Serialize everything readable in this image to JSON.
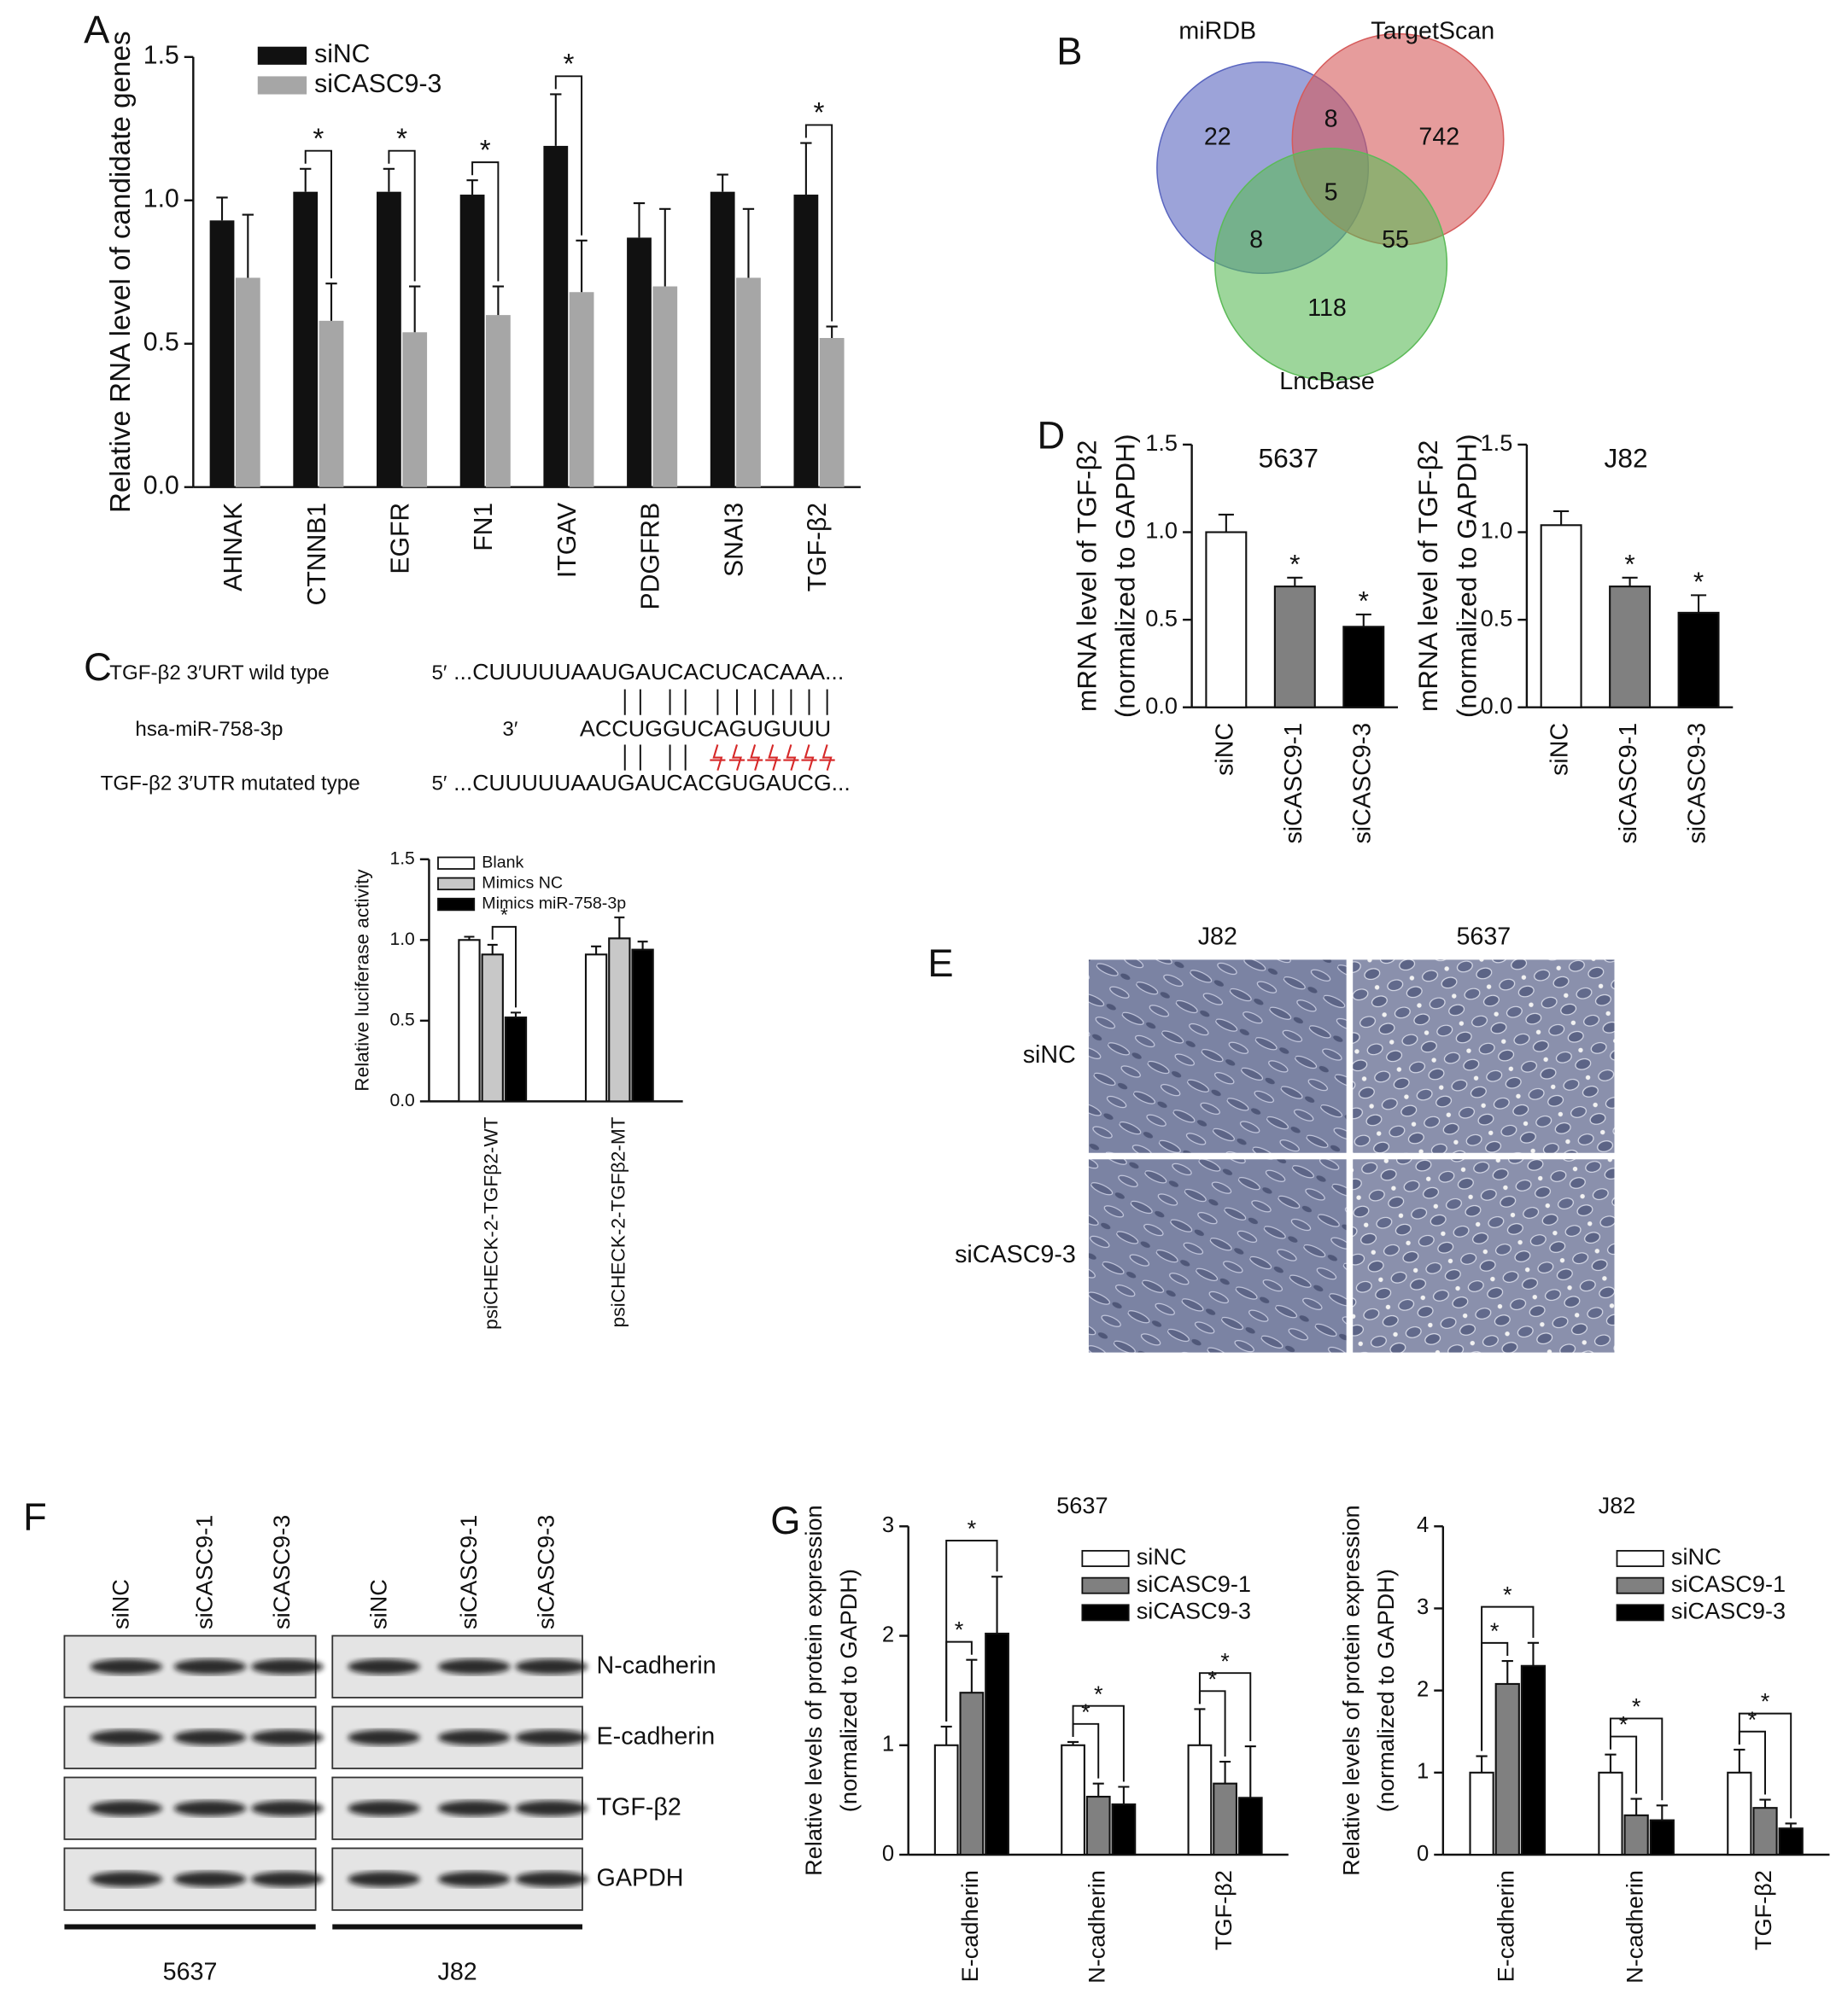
{
  "panel_labels": [
    "A",
    "B",
    "C",
    "D",
    "E",
    "F",
    "G"
  ],
  "chart_data": [
    {
      "type": "bar",
      "ylabel": "Relative RNA level of candidate genes",
      "categories": [
        "AHNAK",
        "CTNNB1",
        "EGFR",
        "FN1",
        "ITGAV",
        "PDGFRB",
        "SNAI3",
        "TGF-β2"
      ],
      "series": [
        {
          "name": "siNC",
          "color": "#111111",
          "values": [
            0.93,
            1.03,
            1.03,
            1.02,
            1.19,
            0.87,
            1.03,
            1.02
          ],
          "errors": [
            0.08,
            0.08,
            0.08,
            0.05,
            0.18,
            0.12,
            0.06,
            0.18
          ]
        },
        {
          "name": "siCASC9-3",
          "color": "#a6a6a6",
          "values": [
            0.73,
            0.58,
            0.54,
            0.6,
            0.68,
            0.7,
            0.73,
            0.52
          ],
          "errors": [
            0.22,
            0.13,
            0.16,
            0.1,
            0.18,
            0.27,
            0.24,
            0.04
          ]
        }
      ],
      "ylim": [
        0,
        1.5
      ],
      "yticks": [
        {
          "value": 0,
          "label": "0.0"
        },
        0.5,
        {
          "value": 1,
          "label": "1.0"
        },
        1.5
      ],
      "legend": "upper left",
      "annotations": [
        {
          "text": "*",
          "category": "CTNNB1",
          "series": [
            "siNC",
            "siCASC9-3"
          ]
        },
        {
          "text": "*",
          "category": "EGFR",
          "series": [
            "siNC",
            "siCASC9-3"
          ]
        },
        {
          "text": "*",
          "category": "FN1",
          "series": [
            "siNC",
            "siCASC9-3"
          ]
        },
        {
          "text": "*",
          "category": "ITGAV",
          "series": [
            "siNC",
            "siCASC9-3"
          ]
        },
        {
          "text": "*",
          "category": "TGF-β2",
          "series": [
            "siNC",
            "siCASC9-3"
          ]
        }
      ]
    },
    {
      "type": "bar",
      "ylabel": "Relative luciferase activity",
      "categories": [
        "psiCHECK-2-TGFβ2-WT",
        "psiCHECK-2-TGFβ2-MT"
      ],
      "series": [
        {
          "name": "Blank",
          "color": "#ffffff",
          "values": [
            1.0,
            0.91
          ],
          "errors": [
            0.02,
            0.05
          ]
        },
        {
          "name": "Mimics NC",
          "color": "#c8c8c8",
          "values": [
            0.91,
            1.01
          ],
          "errors": [
            0.06,
            0.13
          ]
        },
        {
          "name": "Mimics miR-758-3p",
          "color": "#000000",
          "values": [
            0.52,
            0.94
          ],
          "errors": [
            0.03,
            0.05
          ]
        }
      ],
      "edgecolor": "#111111",
      "ylim": [
        0,
        1.5
      ],
      "yticks": [
        {
          "value": 0,
          "label": "0.0"
        },
        0.5,
        {
          "value": 1,
          "label": "1.0"
        },
        1.5
      ],
      "legend": "upper left",
      "annotations": [
        {
          "text": "*",
          "category": "psiCHECK-2-TGFβ2-WT",
          "series": [
            "Mimics NC",
            "Mimics miR-758-3p"
          ]
        }
      ]
    },
    {
      "type": "bar",
      "title": "5637",
      "ylabel": [
        "mRNA level of TGF-β2",
        "(normalized to GAPDH)"
      ],
      "categories": [
        "siNC",
        "siCASC9-1",
        "siCASC9-3"
      ],
      "series": [
        {
          "colors": [
            "#ffffff",
            "#808080",
            "#000000"
          ],
          "values": [
            1.0,
            0.69,
            0.46
          ],
          "errors": [
            0.1,
            0.05,
            0.07
          ]
        }
      ],
      "edgecolor": "#111111",
      "ylim": [
        0,
        1.5
      ],
      "yticks": [
        {
          "value": 0,
          "label": "0.0"
        },
        0.5,
        {
          "value": 1,
          "label": "1.0"
        },
        1.5
      ],
      "annotations": [
        {
          "text": "*",
          "category": "siCASC9-1"
        },
        {
          "text": "*",
          "category": "siCASC9-3"
        }
      ]
    },
    {
      "type": "bar",
      "title": "J82",
      "ylabel": [
        "mRNA level of TGF-β2",
        "(normalized to GAPDH)"
      ],
      "categories": [
        "siNC",
        "siCASC9-1",
        "siCASC9-3"
      ],
      "series": [
        {
          "colors": [
            "#ffffff",
            "#808080",
            "#000000"
          ],
          "values": [
            1.04,
            0.69,
            0.54
          ],
          "errors": [
            0.08,
            0.05,
            0.1
          ]
        }
      ],
      "edgecolor": "#111111",
      "ylim": [
        0,
        1.5
      ],
      "yticks": [
        {
          "value": 0,
          "label": "0.0"
        },
        0.5,
        {
          "value": 1,
          "label": "1.0"
        },
        1.5
      ],
      "annotations": [
        {
          "text": "*",
          "category": "siCASC9-1"
        },
        {
          "text": "*",
          "category": "siCASC9-3"
        }
      ]
    },
    {
      "type": "bar",
      "title": "5637",
      "ylabel": [
        "Relative levels of protein expression",
        "(normalized to GAPDH)"
      ],
      "categories": [
        "E-cadherin",
        "N-cadherin",
        "TGF-β2"
      ],
      "series": [
        {
          "name": "siNC",
          "color": "#ffffff",
          "values": [
            1,
            1,
            1
          ],
          "errors": [
            0.17,
            0.03,
            0.33
          ]
        },
        {
          "name": "siCASC9-1",
          "color": "#808080",
          "values": [
            1.48,
            0.53,
            0.65
          ],
          "errors": [
            0.3,
            0.12,
            0.2
          ]
        },
        {
          "name": "siCASC9-3",
          "color": "#000000",
          "values": [
            2.02,
            0.46,
            0.52
          ],
          "errors": [
            0.52,
            0.16,
            0.47
          ]
        }
      ],
      "edgecolor": "#111111",
      "ylim": [
        0,
        3
      ],
      "yticks": [
        0,
        1,
        2,
        3
      ],
      "legend": "upper right",
      "annotations": [
        {
          "text": "*",
          "category": "E-cadherin",
          "series": [
            "siNC",
            "siCASC9-1"
          ]
        },
        {
          "text": "*",
          "category": "E-cadherin",
          "series": [
            "siNC",
            "siCASC9-3"
          ]
        },
        {
          "text": "*",
          "category": "N-cadherin",
          "series": [
            "siNC",
            "siCASC9-1"
          ]
        },
        {
          "text": "*",
          "category": "N-cadherin",
          "series": [
            "siNC",
            "siCASC9-3"
          ]
        },
        {
          "text": "*",
          "category": "TGF-β2",
          "series": [
            "siNC",
            "siCASC9-1"
          ]
        },
        {
          "text": "*",
          "category": "TGF-β2",
          "series": [
            "siNC",
            "siCASC9-3"
          ]
        }
      ]
    },
    {
      "type": "bar",
      "title": "J82",
      "ylabel": [
        "Relative levels of protein expression",
        "(normalized to GAPDH)"
      ],
      "categories": [
        "E-cadherin",
        "N-cadherin",
        "TGF-β2"
      ],
      "series": [
        {
          "name": "siNC",
          "color": "#ffffff",
          "values": [
            1,
            1,
            1
          ],
          "errors": [
            0.2,
            0.22,
            0.28
          ]
        },
        {
          "name": "siCASC9-1",
          "color": "#808080",
          "values": [
            2.08,
            0.48,
            0.57
          ],
          "errors": [
            0.28,
            0.2,
            0.1
          ]
        },
        {
          "name": "siCASC9-3",
          "color": "#000000",
          "values": [
            2.3,
            0.42,
            0.32
          ],
          "errors": [
            0.28,
            0.18,
            0.06
          ]
        }
      ],
      "edgecolor": "#111111",
      "ylim": [
        0,
        4
      ],
      "yticks": [
        0,
        1,
        2,
        3,
        4
      ],
      "legend": "upper right",
      "annotations": [
        {
          "text": "*",
          "category": "E-cadherin",
          "series": [
            "siNC",
            "siCASC9-1"
          ]
        },
        {
          "text": "*",
          "category": "E-cadherin",
          "series": [
            "siNC",
            "siCASC9-3"
          ]
        },
        {
          "text": "*",
          "category": "N-cadherin",
          "series": [
            "siNC",
            "siCASC9-1"
          ]
        },
        {
          "text": "*",
          "category": "N-cadherin",
          "series": [
            "siNC",
            "siCASC9-3"
          ]
        },
        {
          "text": "*",
          "category": "TGF-β2",
          "series": [
            "siNC",
            "siCASC9-1"
          ]
        },
        {
          "text": "*",
          "category": "TGF-β2",
          "series": [
            "siNC",
            "siCASC9-3"
          ]
        }
      ]
    }
  ],
  "venn": {
    "sets": [
      {
        "name": "miRDB",
        "color": "#5a66c0"
      },
      {
        "name": "TargetScan",
        "color": "#d65a5a"
      },
      {
        "name": "LncBase",
        "color": "#5cba58"
      }
    ],
    "counts": [
      22,
      8,
      742,
      5,
      8,
      55,
      118
    ]
  },
  "sequence": {
    "rows": [
      {
        "name": "TGF-β2  3′URT wild type",
        "end": "5′",
        "seq": "...CUUUUUAAUGAUCACUCACAAA..."
      },
      {
        "name": "hsa-miR-758-3p",
        "end": "3′",
        "seq": "ACCUGGUCAGUGUUU"
      },
      {
        "name": "TGF-β2  3′UTR mutated type",
        "end": "5′",
        "seq": "...CUUUUUAAUGAUCACGUGAUCG..."
      }
    ]
  },
  "micrographs": {
    "columns": [
      "J82",
      "5637"
    ],
    "rows": [
      "siNC",
      "siCASC9-3"
    ]
  },
  "western_blot": {
    "lanes": [
      "siNC",
      "siCASC9-1",
      "siCASC9-3"
    ],
    "cell_lines": [
      "5637",
      "J82"
    ],
    "proteins": [
      "N-cadherin",
      "E-cadherin",
      "TGF-β2",
      "GAPDH"
    ]
  }
}
